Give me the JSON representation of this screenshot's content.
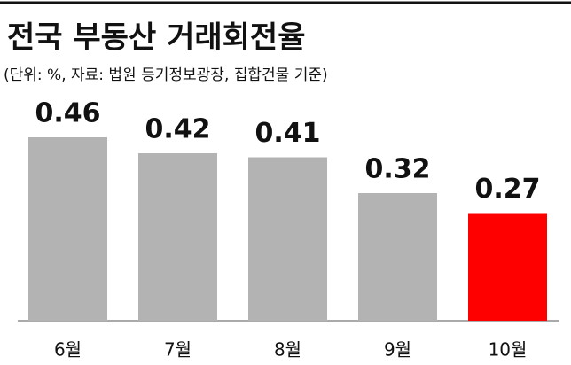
{
  "chart_data": {
    "type": "bar",
    "title": "전국 부동산 거래회전율",
    "subtitle": "(단위: %, 자료: 법원 등기정보광장, 집합건물 기준)",
    "categories": [
      "6월",
      "7월",
      "8월",
      "9월",
      "10월"
    ],
    "values": [
      0.46,
      0.42,
      0.41,
      0.32,
      0.27
    ],
    "colors": [
      "#b3b3b3",
      "#b3b3b3",
      "#b3b3b3",
      "#b3b3b3",
      "#ff0000"
    ]
  }
}
